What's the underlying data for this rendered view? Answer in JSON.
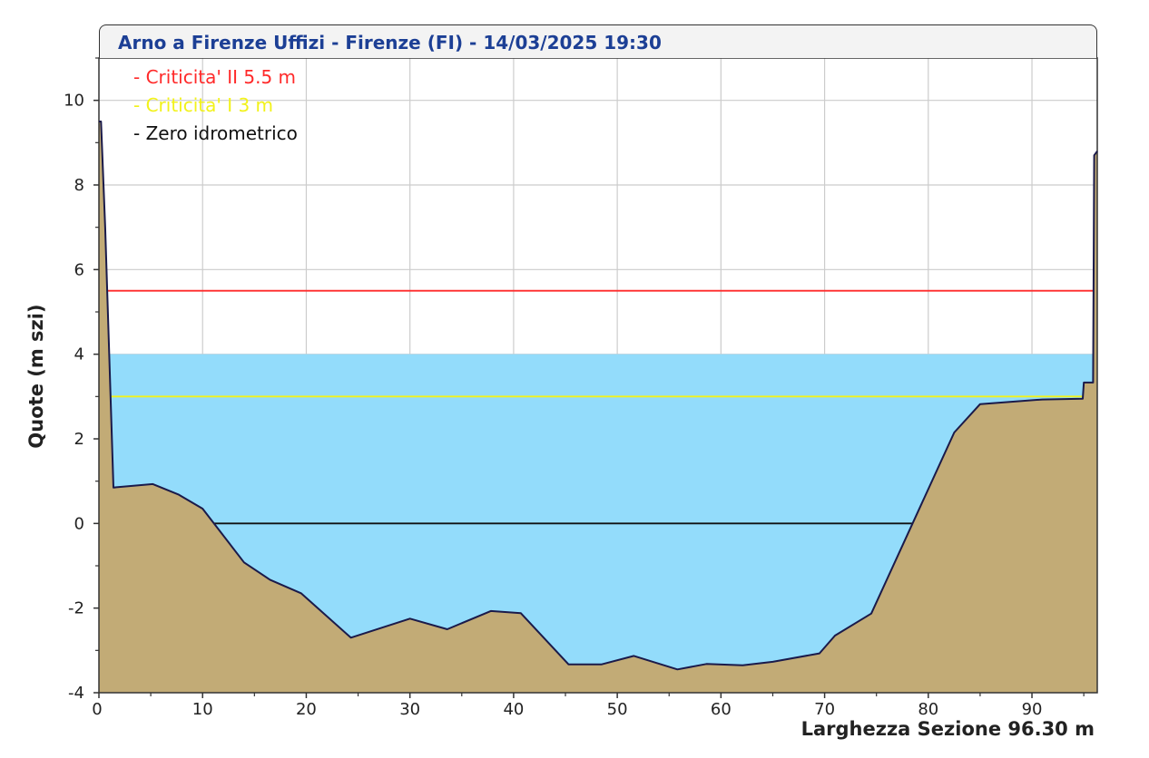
{
  "title": "Arno a Firenze Uffizi - Firenze (FI) - 14/03/2025 19:30",
  "legend": [
    {
      "text": "- Criticita' II 5.5 m",
      "color": "#ff2a2a"
    },
    {
      "text": "- Criticita' I 3 m",
      "color": "#f2f21a"
    },
    {
      "text": "- Zero idrometrico",
      "color": "#111111"
    }
  ],
  "colors": {
    "water": "#93dcfb",
    "ground": "#c2ab76",
    "profile_line": "#1a1a4a",
    "grid": "#cccccc"
  },
  "chart_data": {
    "type": "area",
    "xlabel": "Larghezza Sezione 96.30 m",
    "ylabel": "Quote (m szi)",
    "xlim": [
      0,
      96.3
    ],
    "ylim": [
      -4,
      11
    ],
    "x_ticks": [
      0,
      10,
      20,
      30,
      40,
      50,
      60,
      70,
      80,
      90
    ],
    "y_ticks": [
      -4,
      -2,
      0,
      2,
      4,
      6,
      8,
      10
    ],
    "water_level": 4.0,
    "thresholds": [
      {
        "name": "Criticita' II",
        "value": 5.5,
        "color": "#ff2a2a"
      },
      {
        "name": "Criticita' I",
        "value": 3.0,
        "color": "#f2f21a"
      },
      {
        "name": "Zero idrometrico",
        "value": 0.0,
        "color": "#111111"
      }
    ],
    "riverbed_profile": {
      "x": [
        0,
        0.2,
        0.6,
        1.4,
        5.2,
        7.7,
        10.0,
        14.0,
        16.5,
        19.5,
        24.3,
        30.0,
        33.6,
        37.8,
        40.7,
        45.3,
        48.5,
        51.6,
        55.8,
        58.6,
        62.1,
        65.0,
        69.5,
        71.0,
        74.5,
        82.5,
        85.0,
        91.0,
        94.9,
        95.0,
        95.9,
        96.0,
        96.3
      ],
      "y": [
        9.5,
        9.5,
        7.0,
        0.85,
        0.93,
        0.68,
        0.35,
        -0.92,
        -1.33,
        -1.65,
        -2.7,
        -2.25,
        -2.5,
        -2.07,
        -2.12,
        -3.33,
        -3.33,
        -3.13,
        -3.45,
        -3.32,
        -3.35,
        -3.27,
        -3.07,
        -2.65,
        -2.13,
        2.15,
        2.82,
        2.93,
        2.95,
        3.33,
        3.33,
        8.7,
        8.8
      ]
    }
  }
}
